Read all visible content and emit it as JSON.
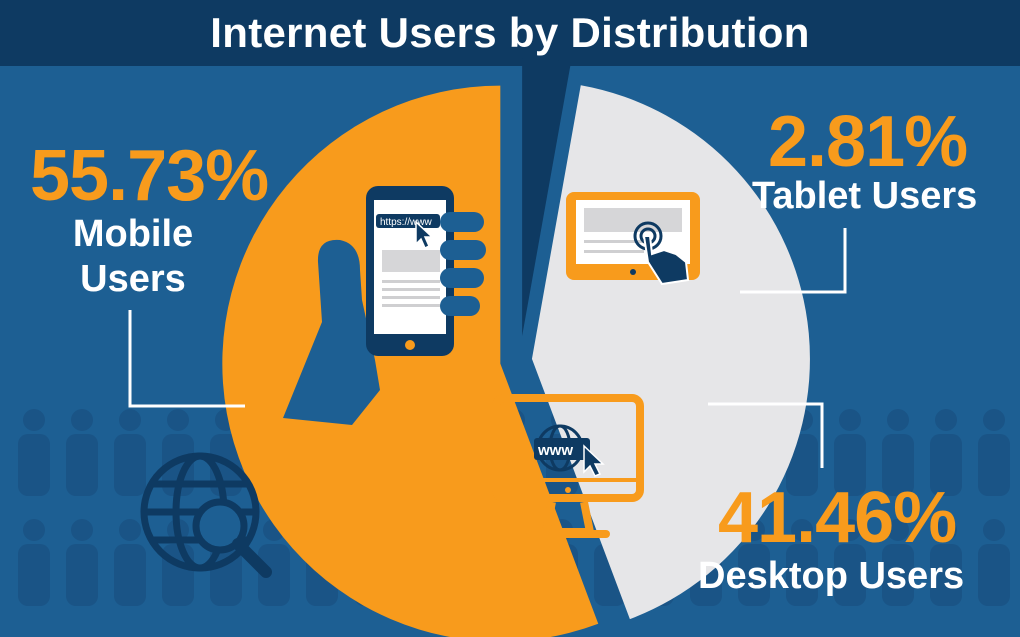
{
  "title": "Internet Users by Distribution",
  "colors": {
    "background": "#1d5f93",
    "title_bar": "#0e3a62",
    "mobile": "#f89b1c",
    "tablet": "#0e3a62",
    "desktop": "#e6e6e8",
    "accent": "#f89b1c"
  },
  "icons": [
    "smartphone-in-hand-icon",
    "tablet-touch-icon",
    "desktop-monitor-www-icon",
    "globe-search-icon",
    "people-crowd-background"
  ],
  "screen_text": {
    "url": "https://www",
    "web": "www"
  },
  "chart_data": {
    "type": "pie",
    "slices": [
      {
        "name": "Mobile Users",
        "value": 55.73,
        "label": "55.73%",
        "color": "#f89b1c"
      },
      {
        "name": "Tablet Users",
        "value": 2.81,
        "label": "2.81%",
        "color": "#0e3a62"
      },
      {
        "name": "Desktop Users",
        "value": 41.46,
        "label": "41.46%",
        "color": "#e6e6e8"
      }
    ],
    "title": "Internet Users by Distribution",
    "legend": "none"
  },
  "labels": {
    "mobile": {
      "pct": "55.73%",
      "line1": "Mobile",
      "line2": "Users"
    },
    "tablet": {
      "pct": "2.81%",
      "name": "Tablet Users"
    },
    "desktop": {
      "pct": "41.46%",
      "name": "Desktop Users"
    }
  }
}
